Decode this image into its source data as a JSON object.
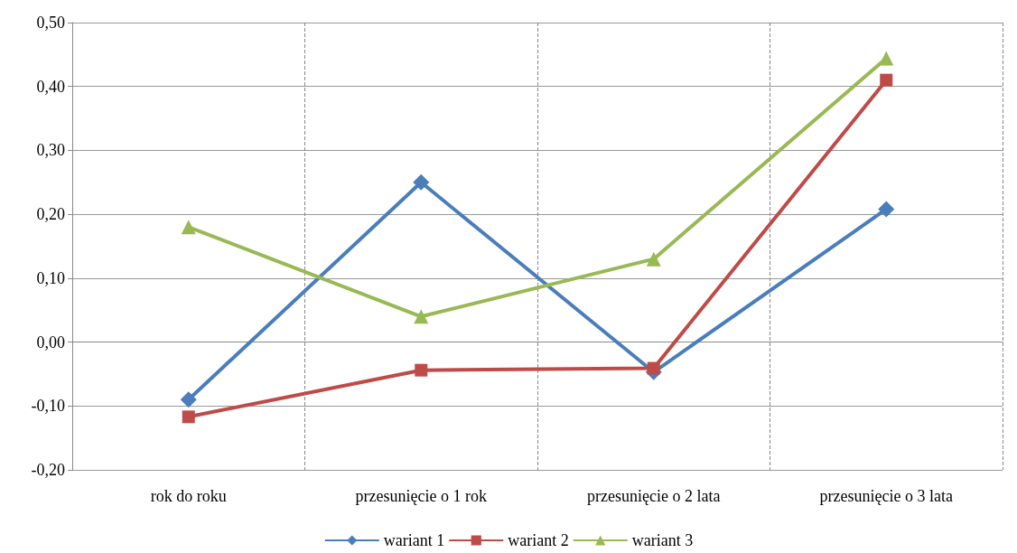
{
  "chart_data": {
    "type": "line",
    "categories": [
      "rok do roku",
      "przesunięcie o 1 rok",
      "przesunięcie o 2 lata",
      "przesunięcie o 3 lata"
    ],
    "series": [
      {
        "name": "wariant 1",
        "color": "#4a7ebb",
        "marker": "diamond",
        "values": [
          -0.09,
          0.25,
          -0.047,
          0.208
        ]
      },
      {
        "name": "wariant 2",
        "color": "#be4b48",
        "marker": "square",
        "values": [
          -0.117,
          -0.044,
          -0.041,
          0.41
        ]
      },
      {
        "name": "wariant 3",
        "color": "#98b954",
        "marker": "triangle",
        "values": [
          0.18,
          0.04,
          0.13,
          0.444
        ]
      }
    ],
    "ylim": [
      -0.2,
      0.5
    ],
    "yticks": [
      {
        "value": -0.2,
        "label": "-0,20"
      },
      {
        "value": -0.1,
        "label": "-0,10"
      },
      {
        "value": 0,
        "label": "0,00"
      },
      {
        "value": 0.1,
        "label": "0,10"
      },
      {
        "value": 0.2,
        "label": "0,20"
      },
      {
        "value": 0.3,
        "label": "0,30"
      },
      {
        "value": 0.4,
        "label": "0,40"
      },
      {
        "value": 0.5,
        "label": "0,50"
      }
    ],
    "grid": true,
    "legend": "bottom",
    "line_style": "solid"
  }
}
